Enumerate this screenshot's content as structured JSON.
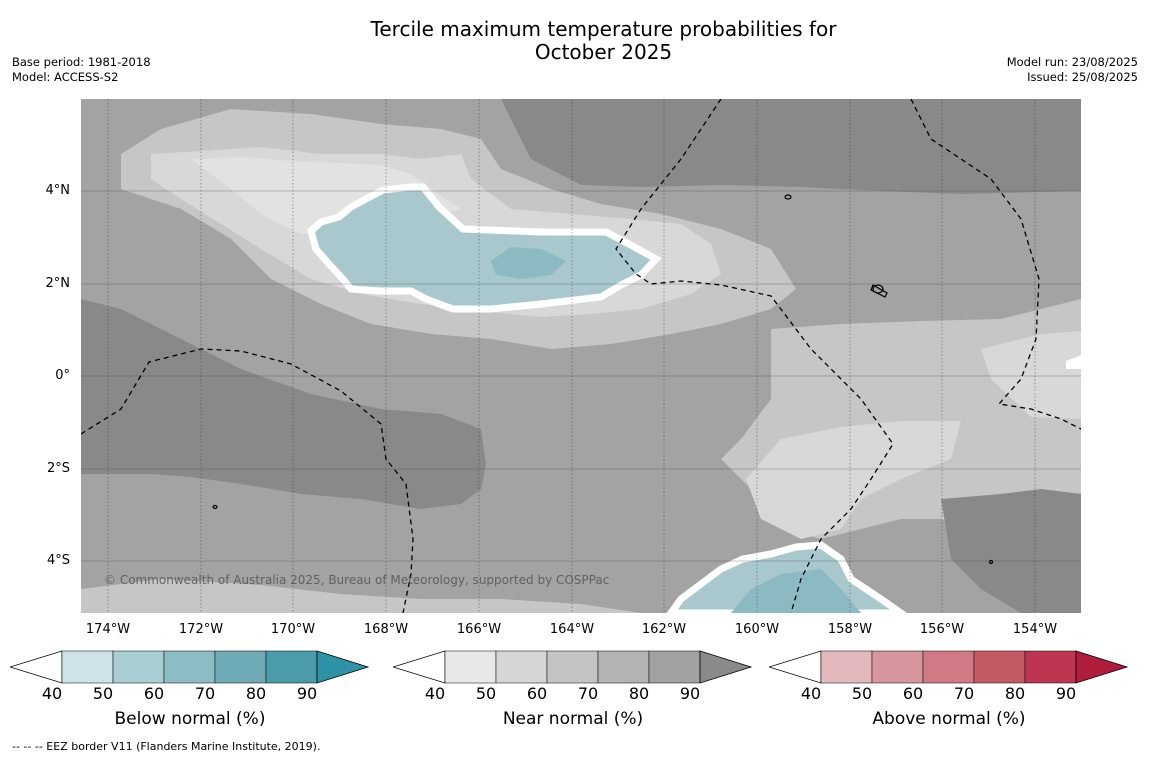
{
  "title": {
    "line1": "Tercile maximum temperature probabilities for",
    "line2": "October 2025"
  },
  "meta": {
    "base_period": "Base period: 1981-2018",
    "model": "Model: ACCESS-S2",
    "model_run": "Model run: 23/08/2025",
    "issued": "Issued: 25/08/2025"
  },
  "map": {
    "latitude_labels": [
      "4°N",
      "2°N",
      "0°",
      "2°S",
      "4°S"
    ],
    "longitude_labels": [
      "174°W",
      "172°W",
      "170°W",
      "168°W",
      "166°W",
      "164°W",
      "162°W",
      "160°W",
      "158°W",
      "156°W",
      "154°W"
    ],
    "copyright": "© Commonwealth of Australia 2025, Bureau of Meteorology, supported by COSPPac",
    "colors": {
      "near_40_50": "#d8d8d8",
      "near_50_60": "#c6c6c6",
      "near_60_70": "#b4b4b4",
      "near_70_80": "#a3a3a3",
      "near_80_90": "#898989",
      "below_50_60": "#a8c8ce",
      "below_60_70": "#8cbac2"
    }
  },
  "colorbars": [
    {
      "title": "Below normal (%)",
      "ticks": [
        "40",
        "50",
        "60",
        "70",
        "80",
        "90"
      ],
      "colors": [
        "#cde3e9",
        "#a9ced4",
        "#8cbcc4",
        "#6eabb7",
        "#4b9cab",
        "#2e93a6"
      ]
    },
    {
      "title": "Near normal (%)",
      "ticks": [
        "40",
        "50",
        "60",
        "70",
        "80",
        "90"
      ],
      "colors": [
        "#e8e8e8",
        "#d6d6d6",
        "#c4c4c4",
        "#b3b3b3",
        "#a2a2a2",
        "#8a8a8a"
      ]
    },
    {
      "title": "Above normal (%)",
      "ticks": [
        "40",
        "50",
        "60",
        "70",
        "80",
        "90"
      ],
      "colors": [
        "#e4b9be",
        "#d7959d",
        "#cf7a84",
        "#c55a67",
        "#bd3550",
        "#b01c3c"
      ]
    }
  ],
  "footnote": "--  --  -- EEZ border V11 (Flanders Marine Institute, 2019)."
}
